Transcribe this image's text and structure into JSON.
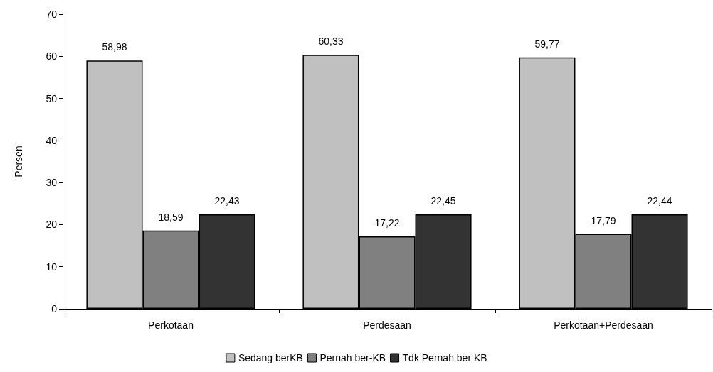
{
  "chart_data": {
    "type": "bar",
    "ylabel": "Persen",
    "categories": [
      "Perkotaan",
      "Perdesaan",
      "Perkotaan+Perdesaan"
    ],
    "series": [
      {
        "name": "Sedang berKB",
        "color": "#c0c0c0",
        "values": [
          58.98,
          60.33,
          59.77
        ],
        "value_labels": [
          "58,98",
          "60,33",
          "59,77"
        ]
      },
      {
        "name": "Pernah ber-KB",
        "color": "#808080",
        "values": [
          18.59,
          17.22,
          17.79
        ],
        "value_labels": [
          "18,59",
          "17,22",
          "17,79"
        ]
      },
      {
        "name": "Tdk Pernah ber KB",
        "color": "#333333",
        "values": [
          22.43,
          22.45,
          22.44
        ],
        "value_labels": [
          "22,43",
          "22,45",
          "22,44"
        ]
      }
    ],
    "ylim": [
      0,
      70
    ],
    "yticks": [
      0,
      10,
      20,
      30,
      40,
      50,
      60,
      70
    ],
    "grid": false,
    "legend": "bottom"
  }
}
